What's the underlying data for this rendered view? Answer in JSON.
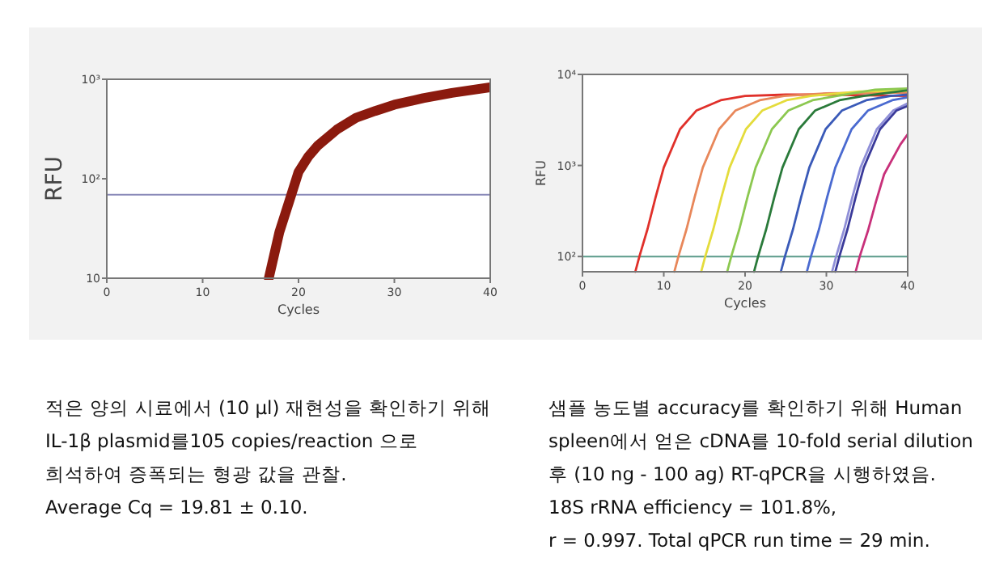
{
  "chart_data": [
    {
      "type": "line",
      "xlabel": "Cycles",
      "ylabel": "RFU",
      "log": true,
      "xlim": [
        0,
        40
      ],
      "xticks": [
        0,
        10,
        20,
        30,
        40
      ],
      "ylim": [
        10,
        1000
      ],
      "yticks": [
        {
          "value": 10,
          "label": "10"
        },
        {
          "value": 100,
          "label": "10²"
        },
        {
          "value": 1000,
          "label": "10³"
        }
      ],
      "series": [
        {
          "color": "#8b1a0e",
          "x": [
            16.9,
            18,
            19,
            20,
            21,
            22,
            24,
            26,
            28,
            30,
            33,
            36,
            40
          ],
          "values": [
            10,
            29,
            58,
            117,
            166,
            215,
            312,
            410,
            480,
            555,
            645,
            730,
            830
          ]
        }
      ],
      "ref_lines": [
        {
          "axis": "y",
          "value": 69,
          "color": "#8a8ab8"
        }
      ],
      "annotations": [
        "적은 양의 시료에서 (10 μl) 재현성을 확인하기 위해",
        "IL-1β plasmid를105  copies/reaction 으로",
        "희석하여 증폭되는 형광 값을 관찰.",
        "Average Cq = 19.81 ± 0.10."
      ]
    },
    {
      "type": "line",
      "xlabel": "Cycles",
      "ylabel": "RFU",
      "log": true,
      "xlim": [
        0,
        40
      ],
      "xticks": [
        0,
        10,
        20,
        30,
        40
      ],
      "ylim": [
        68,
        10000
      ],
      "yticks": [
        {
          "value": 100,
          "label": "10²"
        },
        {
          "value": 1000,
          "label": "10³"
        },
        {
          "value": 10000,
          "label": "10⁴"
        }
      ],
      "series": [
        {
          "color": "#e0302a",
          "x": [
            6.5,
            7,
            8,
            9,
            10,
            12,
            14,
            17,
            20,
            25,
            30,
            35,
            40
          ],
          "values": [
            68,
            100,
            200,
            450,
            950,
            2500,
            4000,
            5200,
            5800,
            6000,
            6000,
            5900,
            5800
          ]
        },
        {
          "color": "#e8875a",
          "x": [
            11.3,
            11.8,
            12.8,
            13.8,
            14.8,
            16.8,
            18.8,
            21.8,
            24.8,
            30,
            35,
            40
          ],
          "values": [
            68,
            100,
            200,
            450,
            950,
            2500,
            4000,
            5200,
            5800,
            6200,
            6300,
            6300
          ]
        },
        {
          "color": "#e4dc3c",
          "x": [
            14.6,
            15.1,
            16.1,
            17.1,
            18.1,
            20.1,
            22.1,
            25.1,
            28.1,
            34,
            40
          ],
          "values": [
            68,
            100,
            200,
            450,
            950,
            2500,
            4000,
            5200,
            5800,
            6500,
            6600
          ]
        },
        {
          "color": "#8cc850",
          "x": [
            17.8,
            18.3,
            19.3,
            20.3,
            21.3,
            23.3,
            25.3,
            28.3,
            31.3,
            36,
            40
          ],
          "values": [
            68,
            100,
            200,
            450,
            950,
            2500,
            4000,
            5200,
            5800,
            6800,
            7000
          ]
        },
        {
          "color": "#2a7a3a",
          "x": [
            21.1,
            21.6,
            22.6,
            23.6,
            24.6,
            26.6,
            28.6,
            31.6,
            34.6,
            40
          ],
          "values": [
            68,
            100,
            200,
            450,
            950,
            2500,
            4000,
            5200,
            5800,
            6700
          ]
        },
        {
          "color": "#3a5ab8",
          "x": [
            24.4,
            24.9,
            25.9,
            26.9,
            27.9,
            29.9,
            31.9,
            34.9,
            37.9,
            40
          ],
          "values": [
            68,
            100,
            200,
            450,
            950,
            2500,
            4000,
            5200,
            5800,
            6000
          ]
        },
        {
          "color": "#4a6ad0",
          "x": [
            27.6,
            28.1,
            29.1,
            30.1,
            31.1,
            33.1,
            35.1,
            38.1,
            40
          ],
          "values": [
            68,
            100,
            200,
            450,
            950,
            2500,
            4000,
            5200,
            5600
          ]
        },
        {
          "color": "#8f8fd8",
          "x": [
            30.7,
            31.2,
            32.2,
            33.2,
            34.2,
            36.2,
            38.2,
            40
          ],
          "values": [
            68,
            100,
            200,
            450,
            950,
            2500,
            4000,
            4800
          ]
        },
        {
          "color": "#3a3a9a",
          "x": [
            31.1,
            31.6,
            32.6,
            33.6,
            34.6,
            36.6,
            38.6,
            40
          ],
          "values": [
            68,
            100,
            200,
            450,
            950,
            2500,
            4000,
            4500
          ]
        },
        {
          "color": "#c8307a",
          "x": [
            33.6,
            34.1,
            35.1,
            36.1,
            37.1,
            39.1,
            40
          ],
          "values": [
            68,
            100,
            190,
            400,
            800,
            1700,
            2200
          ]
        }
      ],
      "ref_lines": [
        {
          "axis": "y",
          "value": 100,
          "color": "#5a9a8a"
        }
      ],
      "annotations": [
        "샘플 농도별 accuracy를 확인하기 위해 Human",
        "spleen에서 얻은 cDNA를 10-fold serial dilution",
        "후 (10 ng  -  100 ag) RT-qPCR을 시행하였음.",
        "18S rRNA  efficiency = 101.8%,",
        "r = 0.997. Total qPCR run time = 29 min."
      ]
    }
  ]
}
